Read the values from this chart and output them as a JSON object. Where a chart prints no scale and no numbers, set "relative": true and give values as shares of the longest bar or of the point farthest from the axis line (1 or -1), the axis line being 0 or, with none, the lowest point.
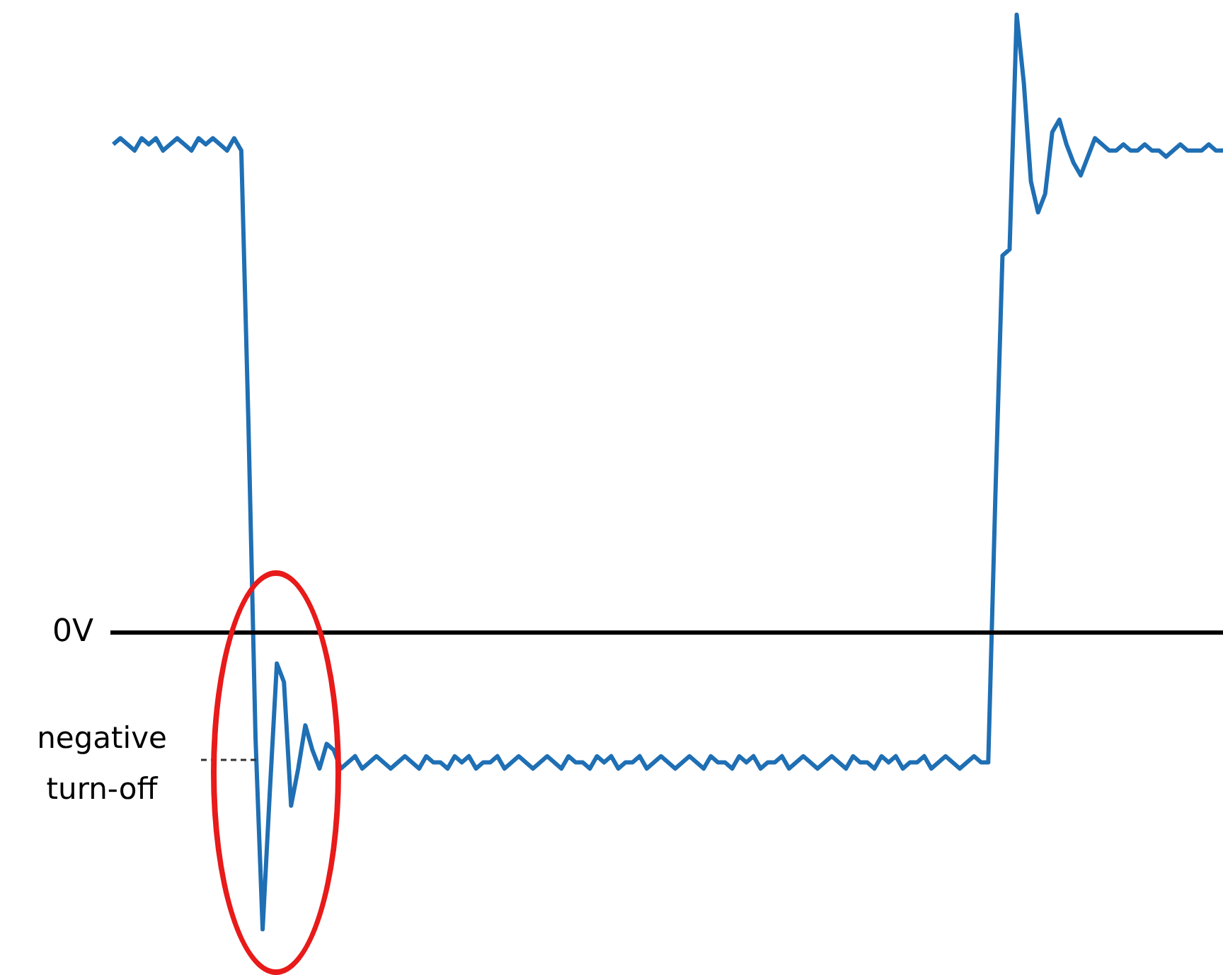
{
  "chart_data": {
    "type": "line",
    "relative": true,
    "categories": [
      null,
      null,
      null,
      null,
      null,
      null,
      null,
      null,
      null,
      null,
      null,
      null,
      null,
      null,
      null,
      null,
      null,
      null,
      null,
      null,
      null,
      null,
      null,
      null,
      null,
      null,
      null,
      null,
      null,
      null,
      null,
      null,
      null,
      null,
      null,
      null,
      null,
      null,
      null,
      null,
      null,
      null,
      null,
      null,
      null,
      null,
      null,
      null,
      null,
      null,
      null,
      null,
      null,
      null,
      null,
      null,
      null,
      null,
      null,
      null,
      null,
      null,
      null,
      null,
      null,
      null,
      null,
      null,
      null,
      null,
      null,
      null,
      null,
      null,
      null,
      null,
      null,
      null,
      null,
      null,
      null,
      null,
      null,
      null,
      null,
      null,
      null,
      null,
      null,
      null,
      null,
      null,
      null,
      null,
      null,
      null,
      null,
      null,
      null,
      null,
      null,
      null,
      null,
      null,
      null,
      null,
      null,
      null,
      null,
      null,
      null,
      null,
      null,
      null,
      null,
      null,
      null,
      null,
      null,
      null,
      null,
      null,
      null,
      null,
      null,
      null,
      null,
      null,
      null,
      null,
      null,
      null,
      null,
      null,
      null,
      null,
      null,
      null,
      null,
      null,
      null,
      null,
      null,
      null,
      null,
      null,
      null,
      null,
      null,
      null,
      null,
      null,
      null,
      null,
      null,
      null,
      null
    ],
    "series": [
      {
        "color": "#1f6fb4",
        "values": [
          0.79,
          0.8,
          0.79,
          0.78,
          0.8,
          0.79,
          0.8,
          0.78,
          0.79,
          0.8,
          0.79,
          0.78,
          0.8,
          0.79,
          0.8,
          0.79,
          0.78,
          0.8,
          0.78,
          0.34,
          -0.17,
          -0.48,
          -0.26,
          -0.05,
          -0.08,
          -0.28,
          -0.22,
          -0.15,
          -0.19,
          -0.22,
          -0.18,
          -0.19,
          -0.22,
          -0.21,
          -0.2,
          -0.22,
          -0.21,
          -0.2,
          -0.21,
          -0.22,
          -0.21,
          -0.2,
          -0.21,
          -0.22,
          -0.2,
          -0.21,
          -0.21,
          -0.22,
          -0.2,
          -0.21,
          -0.2,
          -0.22,
          -0.21,
          -0.21,
          -0.2,
          -0.22,
          -0.21,
          -0.2,
          -0.21,
          -0.22,
          -0.21,
          -0.2,
          -0.21,
          -0.22,
          -0.2,
          -0.21,
          -0.21,
          -0.22,
          -0.2,
          -0.21,
          -0.2,
          -0.22,
          -0.21,
          -0.21,
          -0.2,
          -0.22,
          -0.21,
          -0.2,
          -0.21,
          -0.22,
          -0.21,
          -0.2,
          -0.21,
          -0.22,
          -0.2,
          -0.21,
          -0.21,
          -0.22,
          -0.2,
          -0.21,
          -0.2,
          -0.22,
          -0.21,
          -0.21,
          -0.2,
          -0.22,
          -0.21,
          -0.2,
          -0.21,
          -0.22,
          -0.21,
          -0.2,
          -0.21,
          -0.22,
          -0.2,
          -0.21,
          -0.21,
          -0.22,
          -0.2,
          -0.21,
          -0.2,
          -0.22,
          -0.21,
          -0.21,
          -0.2,
          -0.22,
          -0.21,
          -0.2,
          -0.21,
          -0.22,
          -0.21,
          -0.2,
          -0.21,
          -0.21,
          0.22,
          0.61,
          0.62,
          1,
          0.89,
          0.73,
          0.68,
          0.71,
          0.81,
          0.83,
          0.79,
          0.76,
          0.74,
          0.77,
          0.8,
          0.79,
          0.78,
          0.78,
          0.79,
          0.78,
          0.78,
          0.79,
          0.78,
          0.78,
          0.77,
          0.78,
          0.79,
          0.78,
          0.78,
          0.78,
          0.79,
          0.78,
          0.78
        ]
      }
    ],
    "ref_lines": [
      {
        "axis": "y",
        "value": 0,
        "label": "0V",
        "color": "#000000"
      }
    ],
    "annotations": [
      "negative turn-off"
    ],
    "legend": false
  }
}
